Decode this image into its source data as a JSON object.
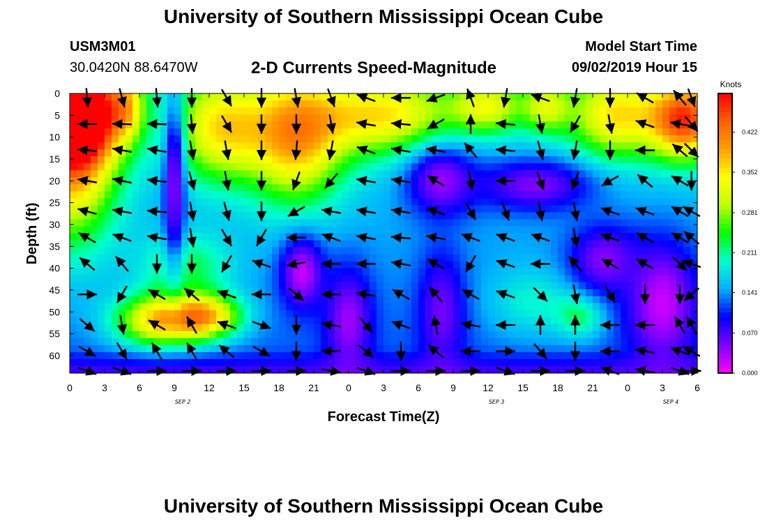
{
  "header": {
    "title": "University of Southern Mississippi Ocean Cube",
    "station_id": "USM3M01",
    "coordinates": "30.0420N 88.6470W",
    "subtitle": "2-D Currents Speed-Magnitude",
    "model_start_label": "Model Start Time",
    "model_start_value": "09/02/2019 Hour 15"
  },
  "footer": {
    "title": "University of Southern Mississippi Ocean Cube"
  },
  "chart_data": {
    "type": "heatmap",
    "title": "2-D Currents Speed-Magnitude",
    "xlabel": "Forecast Time(Z)",
    "ylabel": "Depth (ft)",
    "x_tick_labels": [
      "0",
      "3",
      "6",
      "9",
      "12",
      "15",
      "18",
      "21",
      "0",
      "3",
      "6",
      "9",
      "12",
      "15",
      "18",
      "21",
      "0",
      "3",
      "6"
    ],
    "x_range_hours": [
      0,
      54
    ],
    "date_labels": [
      "SEP 2",
      "SEP 3",
      "SEP 4"
    ],
    "date_label_hours": [
      9,
      36,
      51
    ],
    "y_tick_labels": [
      "0",
      "5",
      "10",
      "15",
      "20",
      "25",
      "30",
      "35",
      "40",
      "45",
      "50",
      "55",
      "60"
    ],
    "ylim": [
      0,
      64
    ],
    "y_inverted": true,
    "colorbar": {
      "unit": "Knots",
      "tick_labels": [
        "0.422",
        "0.352",
        "0.281",
        "0.211",
        "0.141",
        "0.070",
        "0.000"
      ],
      "tick_values": [
        0.422,
        0.352,
        0.281,
        0.211,
        0.141,
        0.07,
        0.0
      ],
      "range": [
        0,
        0.49
      ],
      "colormap": [
        "#ff00ff",
        "#8000ff",
        "#0000ff",
        "#00b0ff",
        "#00ffd0",
        "#00ff00",
        "#c0ff00",
        "#ffff00",
        "#ffa000",
        "#ff6000",
        "#ff0000"
      ]
    },
    "speed_hotspots": [
      {
        "hour": 0,
        "depth": 10,
        "speed": 0.44,
        "sx": 4,
        "sy": 22
      },
      {
        "hour": 1,
        "depth": 5,
        "speed": 0.43,
        "sx": 3,
        "sy": 10
      },
      {
        "hour": 5,
        "depth": 3,
        "speed": 0.29,
        "sx": 1.5,
        "sy": 8
      },
      {
        "hour": 13,
        "depth": 8,
        "speed": 0.34,
        "sx": 4,
        "sy": 12
      },
      {
        "hour": 19.5,
        "depth": 10,
        "speed": 0.37,
        "sx": 4,
        "sy": 15
      },
      {
        "hour": 27,
        "depth": 5,
        "speed": 0.34,
        "sx": 6,
        "sy": 9
      },
      {
        "hour": 36,
        "depth": 3,
        "speed": 0.3,
        "sx": 3,
        "sy": 6
      },
      {
        "hour": 41,
        "depth": 3,
        "speed": 0.28,
        "sx": 2,
        "sy": 6
      },
      {
        "hour": 47,
        "depth": 5,
        "speed": 0.34,
        "sx": 4,
        "sy": 10
      },
      {
        "hour": 53,
        "depth": 6,
        "speed": 0.44,
        "sx": 3,
        "sy": 9
      },
      {
        "hour": 8,
        "depth": 52,
        "speed": 0.39,
        "sx": 4,
        "sy": 6
      },
      {
        "hour": 12,
        "depth": 51,
        "speed": 0.33,
        "sx": 3,
        "sy": 5
      },
      {
        "hour": 10,
        "depth": 40,
        "speed": 0.24,
        "sx": 4,
        "sy": 8
      },
      {
        "hour": 40,
        "depth": 48,
        "speed": 0.21,
        "sx": 4,
        "sy": 8
      },
      {
        "hour": 44,
        "depth": 51,
        "speed": 0.23,
        "sx": 2,
        "sy": 5
      }
    ],
    "speed_lows": [
      {
        "hour": 9,
        "depth": 20,
        "speed": 0.02,
        "sx": 0.9,
        "sy": 20
      },
      {
        "hour": 20,
        "depth": 41,
        "speed": 0.0,
        "sx": 1.8,
        "sy": 8
      },
      {
        "hour": 24,
        "depth": 52,
        "speed": 0.02,
        "sx": 2,
        "sy": 12
      },
      {
        "hour": 32,
        "depth": 50,
        "speed": 0.04,
        "sx": 2,
        "sy": 14
      },
      {
        "hour": 32,
        "depth": 20,
        "speed": 0.02,
        "sx": 3,
        "sy": 8
      },
      {
        "hour": 40,
        "depth": 21,
        "speed": 0.03,
        "sx": 5,
        "sy": 6
      },
      {
        "hour": 51,
        "depth": 48,
        "speed": 0.0,
        "sx": 3,
        "sy": 14
      },
      {
        "hour": 46,
        "depth": 38,
        "speed": 0.03,
        "sx": 3,
        "sy": 8
      }
    ],
    "vector_field": {
      "times_hours": [
        0,
        3,
        6,
        9,
        12,
        15,
        18,
        21,
        24,
        27,
        30,
        33,
        36,
        39,
        42,
        45,
        48,
        51,
        54
      ],
      "depths_ft": [
        0,
        6,
        12,
        19,
        26,
        32,
        38,
        45,
        52,
        58,
        64
      ],
      "note": "direction angles in degrees (0 = rightward, 90 = downward on plot); approximate reading of arrows",
      "angles": [
        [
          85,
          75,
          85,
          90,
          60,
          90,
          80,
          70,
          200,
          180,
          160,
          250,
          100,
          200,
          100,
          90,
          210,
          230,
          70
        ],
        [
          180,
          182,
          182,
          85,
          60,
          90,
          90,
          80,
          190,
          185,
          150,
          270,
          185,
          80,
          120,
          80,
          200,
          190,
          50
        ],
        [
          185,
          190,
          190,
          80,
          80,
          90,
          95,
          100,
          200,
          190,
          190,
          230,
          185,
          75,
          100,
          90,
          180,
          220,
          45
        ],
        [
          190,
          192,
          187,
          75,
          80,
          90,
          110,
          130,
          190,
          190,
          210,
          80,
          180,
          70,
          110,
          150,
          220,
          210,
          90
        ],
        [
          195,
          190,
          185,
          80,
          75,
          90,
          150,
          190,
          190,
          190,
          200,
          60,
          70,
          80,
          80,
          200,
          200,
          210,
          210
        ],
        [
          210,
          200,
          190,
          80,
          60,
          120,
          180,
          200,
          190,
          185,
          190,
          200,
          200,
          200,
          80,
          200,
          210,
          210,
          220
        ],
        [
          220,
          230,
          90,
          90,
          120,
          200,
          170,
          180,
          180,
          190,
          210,
          120,
          200,
          180,
          230,
          210,
          210,
          45,
          200
        ],
        [
          0,
          120,
          210,
          220,
          200,
          180,
          40,
          180,
          190,
          210,
          230,
          210,
          200,
          45,
          80,
          60,
          90,
          90,
          140
        ],
        [
          40,
          80,
          210,
          240,
          200,
          20,
          90,
          190,
          50,
          200,
          260,
          190,
          180,
          270,
          270,
          180,
          180,
          240,
          240
        ],
        [
          30,
          60,
          240,
          240,
          220,
          30,
          90,
          180,
          40,
          90,
          220,
          180,
          0,
          50,
          90,
          180,
          190,
          200,
          210
        ],
        [
          20,
          20,
          0,
          0,
          0,
          0,
          0,
          10,
          20,
          0,
          0,
          0,
          20,
          0,
          0,
          200,
          190,
          20,
          0
        ]
      ]
    }
  }
}
